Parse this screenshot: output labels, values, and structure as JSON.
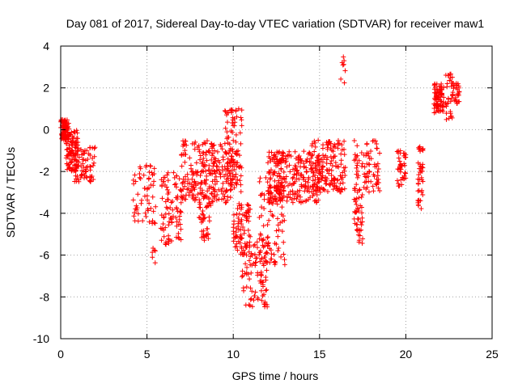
{
  "chart_data": {
    "type": "scatter",
    "title": "Day 081 of 2017, Sidereal Day-to-day VTEC variation (SDTVAR) for receiver maw1",
    "xlabel": "GPS time / hours",
    "ylabel": "SDTVAR / TECUs",
    "xlim": [
      0,
      25
    ],
    "ylim": [
      -10,
      4
    ],
    "xticks": [
      "0",
      "5",
      "10",
      "15",
      "20",
      "25"
    ],
    "yticks": [
      "-10",
      "-8",
      "-6",
      "-4",
      "-2",
      "0",
      "2",
      "4"
    ],
    "grid": true,
    "marker": "+",
    "series_color": "#ff0000",
    "series": [
      {
        "name": "SDTVAR",
        "clusters": [
          {
            "x": [
              0.0,
              0.5
            ],
            "y": [
              -0.5,
              0.5
            ],
            "n": 90
          },
          {
            "x": [
              0.3,
              1.0
            ],
            "y": [
              -2.0,
              0.0
            ],
            "n": 90
          },
          {
            "x": [
              0.8,
              2.0
            ],
            "y": [
              -2.5,
              -0.8
            ],
            "n": 80
          },
          {
            "x": [
              4.2,
              5.5
            ],
            "y": [
              -4.5,
              -1.7
            ],
            "n": 60
          },
          {
            "x": [
              5.3,
              5.5
            ],
            "y": [
              -6.4,
              -5.5
            ],
            "n": 6
          },
          {
            "x": [
              5.8,
              7.0
            ],
            "y": [
              -5.5,
              -2.0
            ],
            "n": 90
          },
          {
            "x": [
              7.0,
              10.0
            ],
            "y": [
              -3.5,
              -0.5
            ],
            "n": 250
          },
          {
            "x": [
              8.0,
              8.7
            ],
            "y": [
              -5.3,
              -3.5
            ],
            "n": 40
          },
          {
            "x": [
              9.5,
              10.5
            ],
            "y": [
              -3.0,
              1.0
            ],
            "n": 90
          },
          {
            "x": [
              10.0,
              11.0
            ],
            "y": [
              -6.0,
              -3.5
            ],
            "n": 80
          },
          {
            "x": [
              10.5,
              12.0
            ],
            "y": [
              -8.5,
              -5.0
            ],
            "n": 100
          },
          {
            "x": [
              11.5,
              13.0
            ],
            "y": [
              -6.5,
              -2.0
            ],
            "n": 100
          },
          {
            "x": [
              12.0,
              15.0
            ],
            "y": [
              -3.5,
              -1.0
            ],
            "n": 250
          },
          {
            "x": [
              14.5,
              16.5
            ],
            "y": [
              -3.0,
              -0.5
            ],
            "n": 150
          },
          {
            "x": [
              16.2,
              16.5
            ],
            "y": [
              2.0,
              3.7
            ],
            "n": 8
          },
          {
            "x": [
              17.0,
              17.5
            ],
            "y": [
              -5.5,
              -3.0
            ],
            "n": 40
          },
          {
            "x": [
              17.0,
              18.5
            ],
            "y": [
              -3.0,
              -0.5
            ],
            "n": 80
          },
          {
            "x": [
              19.5,
              20.0
            ],
            "y": [
              -2.7,
              -1.0
            ],
            "n": 40
          },
          {
            "x": [
              20.7,
              21.0
            ],
            "y": [
              -3.8,
              -0.8
            ],
            "n": 40
          },
          {
            "x": [
              21.6,
              22.2
            ],
            "y": [
              0.8,
              2.2
            ],
            "n": 80
          },
          {
            "x": [
              22.3,
              22.7
            ],
            "y": [
              0.3,
              2.7
            ],
            "n": 30
          },
          {
            "x": [
              22.7,
              23.1
            ],
            "y": [
              1.2,
              2.3
            ],
            "n": 30
          }
        ]
      }
    ]
  }
}
